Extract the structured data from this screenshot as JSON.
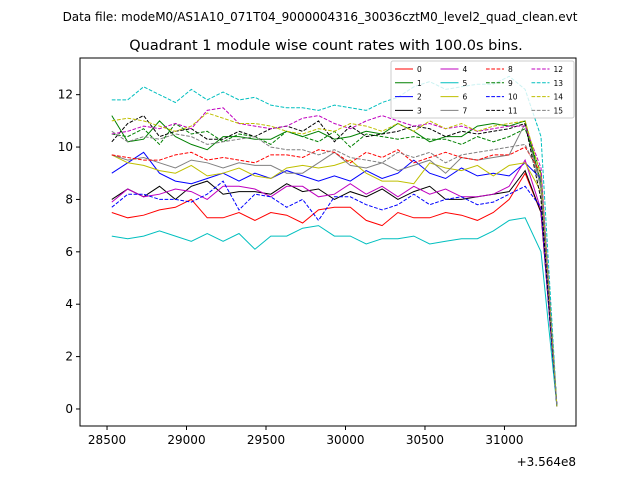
{
  "figure": {
    "suptitle": "Data file: modeM0/AS1A10_071T04_9000004316_30036cztM0_level2_quad_clean.evt",
    "offset_text": "+3.564e8"
  },
  "chart_data": {
    "type": "line",
    "title": "Quadrant 1 module wise count rates with 100.0s bins.",
    "xlabel": "",
    "ylabel": "",
    "x_offset": 356400000,
    "xlim": [
      28330,
      31450
    ],
    "ylim": [
      -0.65,
      13.4
    ],
    "xticks": [
      28500,
      29000,
      29500,
      30000,
      30500,
      31000
    ],
    "xtick_labels": [
      "28500",
      "29000",
      "29500",
      "30000",
      "30500",
      "31000"
    ],
    "yticks": [
      0,
      2,
      4,
      6,
      8,
      10,
      12
    ],
    "ytick_labels": [
      "0",
      "2",
      "4",
      "6",
      "8",
      "10",
      "12"
    ],
    "grid": false,
    "legend": {
      "placement": "top-right",
      "ncol": 4
    },
    "x": [
      28530,
      28630,
      28730,
      28830,
      28930,
      29030,
      29130,
      29230,
      29330,
      29430,
      29530,
      29630,
      29730,
      29830,
      29930,
      30030,
      30130,
      30230,
      30330,
      30430,
      30530,
      30630,
      30730,
      30830,
      30930,
      31030,
      31130,
      31230,
      31330
    ],
    "series": [
      {
        "name": "0",
        "color": "#ff0000",
        "dash": "solid",
        "values": [
          7.5,
          7.3,
          7.4,
          7.6,
          7.7,
          8.0,
          7.3,
          7.3,
          7.5,
          7.2,
          7.5,
          7.4,
          7.1,
          7.6,
          7.7,
          7.7,
          7.2,
          7.0,
          7.5,
          7.3,
          7.3,
          7.5,
          7.4,
          7.2,
          7.5,
          8.0,
          9.0,
          7.5,
          0.1
        ]
      },
      {
        "name": "1",
        "color": "#008000",
        "dash": "solid",
        "values": [
          11.2,
          10.2,
          10.3,
          11.0,
          10.4,
          10.1,
          9.9,
          10.4,
          10.4,
          10.3,
          10.3,
          10.6,
          10.4,
          10.6,
          10.3,
          10.4,
          10.6,
          10.5,
          10.9,
          10.6,
          10.2,
          10.4,
          10.4,
          10.8,
          10.9,
          10.8,
          11.0,
          8.6,
          0.1
        ]
      },
      {
        "name": "2",
        "color": "#0000ff",
        "dash": "solid",
        "values": [
          9.0,
          9.4,
          9.8,
          9.0,
          8.7,
          8.6,
          8.8,
          9.0,
          8.7,
          9.0,
          8.8,
          9.1,
          8.9,
          8.7,
          8.9,
          8.7,
          9.1,
          8.8,
          9.0,
          9.5,
          9.0,
          8.8,
          9.2,
          8.9,
          9.0,
          8.9,
          9.4,
          8.8,
          0.1
        ]
      },
      {
        "name": "3",
        "color": "#000000",
        "dash": "solid",
        "values": [
          8.0,
          8.4,
          8.1,
          8.5,
          8.0,
          8.5,
          8.7,
          8.2,
          8.3,
          8.3,
          8.2,
          8.6,
          8.3,
          8.4,
          8.0,
          8.3,
          8.1,
          8.4,
          8.0,
          8.3,
          8.5,
          8.0,
          8.0,
          8.1,
          8.2,
          8.3,
          9.1,
          7.5,
          0.1
        ]
      },
      {
        "name": "4",
        "color": "#bf00bf",
        "dash": "solid",
        "values": [
          7.9,
          8.4,
          8.1,
          8.2,
          8.4,
          8.3,
          8.0,
          8.5,
          8.5,
          8.4,
          8.1,
          8.5,
          8.5,
          8.1,
          8.2,
          8.6,
          8.2,
          8.5,
          8.1,
          8.5,
          8.2,
          8.4,
          8.1,
          8.1,
          8.2,
          8.5,
          9.5,
          7.6,
          0.1
        ]
      },
      {
        "name": "5",
        "color": "#00bfbf",
        "dash": "solid",
        "values": [
          6.6,
          6.5,
          6.6,
          6.8,
          6.6,
          6.4,
          6.7,
          6.4,
          6.7,
          6.1,
          6.6,
          6.6,
          6.9,
          7.0,
          6.6,
          6.6,
          6.3,
          6.5,
          6.5,
          6.6,
          6.3,
          6.4,
          6.5,
          6.5,
          6.8,
          7.2,
          7.3,
          6.0,
          0.1
        ]
      },
      {
        "name": "6",
        "color": "#bfbf00",
        "dash": "solid",
        "values": [
          9.7,
          9.4,
          9.3,
          9.1,
          9.0,
          9.3,
          8.9,
          9.0,
          9.2,
          8.9,
          8.8,
          9.2,
          9.3,
          9.2,
          9.3,
          9.5,
          9.0,
          8.7,
          8.7,
          8.6,
          9.4,
          9.2,
          9.1,
          9.3,
          8.9,
          9.3,
          9.4,
          8.3,
          0.1
        ]
      },
      {
        "name": "7",
        "color": "#808080",
        "dash": "solid",
        "values": [
          9.7,
          9.5,
          9.6,
          9.4,
          9.2,
          9.5,
          9.4,
          9.2,
          9.4,
          9.3,
          9.3,
          9.0,
          9.0,
          9.4,
          9.8,
          9.3,
          9.2,
          9.4,
          9.1,
          9.3,
          9.5,
          9.0,
          9.6,
          9.5,
          9.6,
          9.7,
          10.9,
          8.4,
          0.1
        ]
      },
      {
        "name": "8",
        "color": "#ff0000",
        "dash": "dashed",
        "values": [
          9.7,
          9.6,
          9.5,
          9.5,
          9.7,
          9.8,
          9.5,
          9.6,
          9.5,
          9.4,
          9.7,
          9.7,
          9.6,
          9.9,
          9.8,
          9.4,
          9.8,
          9.6,
          9.9,
          9.4,
          9.6,
          9.8,
          9.6,
          9.5,
          9.7,
          9.7,
          10.0,
          9.0,
          0.1
        ]
      },
      {
        "name": "9",
        "color": "#008000",
        "dash": "dashed",
        "values": [
          10.5,
          10.4,
          10.7,
          10.1,
          10.9,
          10.5,
          10.6,
          10.2,
          10.5,
          10.4,
          10.1,
          10.6,
          10.4,
          10.2,
          10.6,
          10.0,
          10.5,
          10.4,
          10.3,
          10.4,
          10.3,
          10.3,
          10.1,
          10.4,
          10.2,
          10.4,
          10.7,
          9.0,
          0.1
        ]
      },
      {
        "name": "10",
        "color": "#0000ff",
        "dash": "dashed",
        "values": [
          7.7,
          8.2,
          8.2,
          8.0,
          8.0,
          7.9,
          8.2,
          8.7,
          7.6,
          8.2,
          8.1,
          7.7,
          8.0,
          7.2,
          8.1,
          8.1,
          7.8,
          7.6,
          7.8,
          8.2,
          7.8,
          8.0,
          8.1,
          7.8,
          7.9,
          8.2,
          8.5,
          7.7,
          0.1
        ]
      },
      {
        "name": "11",
        "color": "#000000",
        "dash": "dashed",
        "values": [
          10.2,
          10.9,
          11.2,
          10.4,
          10.6,
          10.7,
          10.3,
          10.3,
          10.6,
          10.4,
          10.7,
          10.8,
          10.6,
          11.0,
          10.2,
          10.8,
          10.4,
          10.5,
          10.6,
          10.8,
          10.7,
          10.4,
          10.6,
          10.5,
          10.6,
          10.7,
          10.9,
          8.0,
          0.1
        ]
      },
      {
        "name": "12",
        "color": "#bf00bf",
        "dash": "dashed",
        "values": [
          10.5,
          10.6,
          10.8,
          10.7,
          10.9,
          10.7,
          11.4,
          11.5,
          10.9,
          10.8,
          10.7,
          10.8,
          11.1,
          11.2,
          10.9,
          10.7,
          11.0,
          11.2,
          11.0,
          10.8,
          10.9,
          10.7,
          10.8,
          10.6,
          10.7,
          10.8,
          10.8,
          9.2,
          0.1
        ]
      },
      {
        "name": "13",
        "color": "#00bfbf",
        "dash": "dashed",
        "values": [
          11.8,
          11.8,
          12.3,
          12.0,
          11.7,
          12.2,
          11.8,
          12.1,
          11.8,
          11.9,
          11.6,
          11.5,
          11.5,
          11.4,
          11.6,
          11.5,
          11.4,
          11.7,
          11.9,
          12.3,
          12.5,
          12.2,
          12.3,
          12.4,
          12.4,
          12.7,
          12.2,
          10.4,
          0.1
        ]
      },
      {
        "name": "14",
        "color": "#bfbf00",
        "dash": "dashed",
        "values": [
          11.0,
          11.1,
          11.0,
          10.8,
          10.6,
          10.8,
          11.3,
          11.1,
          10.9,
          10.9,
          10.8,
          10.6,
          10.5,
          10.7,
          10.6,
          10.9,
          10.8,
          10.6,
          10.9,
          10.6,
          11.0,
          10.7,
          10.9,
          10.6,
          10.8,
          10.9,
          11.0,
          8.9,
          0.1
        ]
      },
      {
        "name": "15",
        "color": "#808080",
        "dash": "dashed",
        "values": [
          10.6,
          10.2,
          10.4,
          10.3,
          10.5,
          10.4,
          10.1,
          10.2,
          10.3,
          10.4,
          10.0,
          9.9,
          9.9,
          9.7,
          9.9,
          9.6,
          9.5,
          9.4,
          9.8,
          9.6,
          9.8,
          9.4,
          9.7,
          9.8,
          9.9,
          10.0,
          10.1,
          8.8,
          0.1
        ]
      }
    ]
  }
}
